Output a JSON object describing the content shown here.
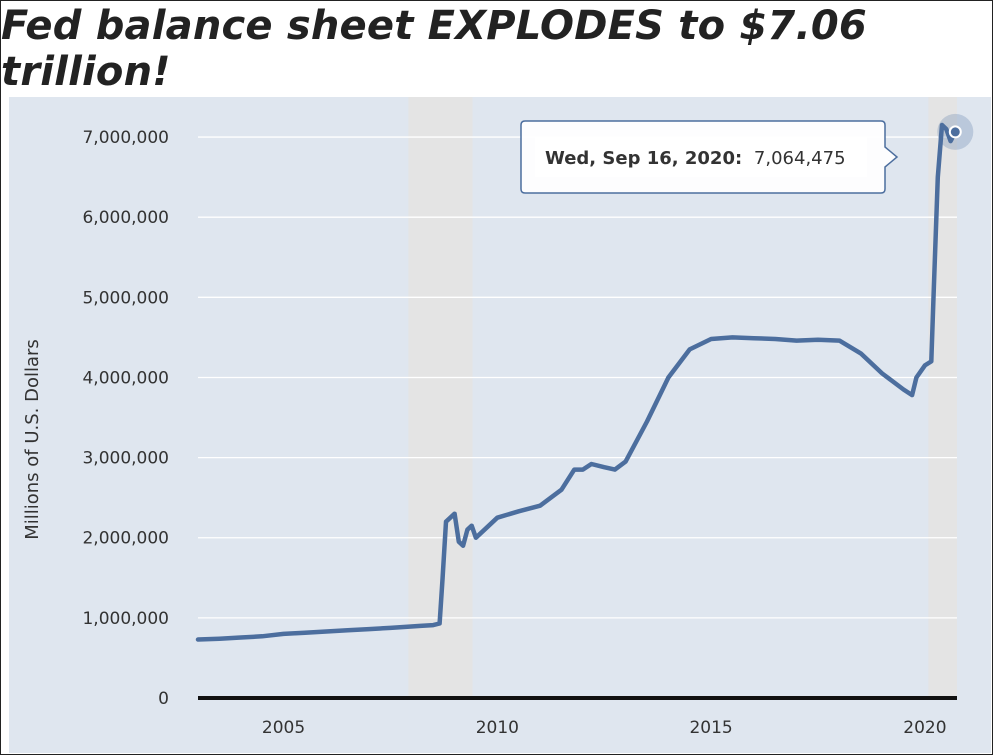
{
  "headline": "Fed balance sheet EXPLODES to $7.06 trillion!",
  "colors": {
    "plot_background": "#dfe6ef",
    "recession_band": "#e4e4e4",
    "series": "#4c6e9e",
    "gridline": "#ffffff",
    "axis": "#111111"
  },
  "chart_data": {
    "type": "line",
    "title": "",
    "xlabel": "",
    "ylabel": "Millions of U.S. Dollars",
    "xlim": [
      2003.0,
      2020.75
    ],
    "ylim": [
      0,
      7500000
    ],
    "x_ticks": [
      {
        "value": 2005,
        "label": "2005"
      },
      {
        "value": 2010,
        "label": "2010"
      },
      {
        "value": 2015,
        "label": "2015"
      },
      {
        "value": 2020,
        "label": "2020"
      }
    ],
    "y_ticks": [
      {
        "value": 0,
        "label": "0"
      },
      {
        "value": 1000000,
        "label": "1,000,000"
      },
      {
        "value": 2000000,
        "label": "2,000,000"
      },
      {
        "value": 3000000,
        "label": "3,000,000"
      },
      {
        "value": 4000000,
        "label": "4,000,000"
      },
      {
        "value": 5000000,
        "label": "5,000,000"
      },
      {
        "value": 6000000,
        "label": "6,000,000"
      },
      {
        "value": 7000000,
        "label": "7,000,000"
      }
    ],
    "grid": true,
    "recessions": [
      {
        "start": 2007.92,
        "end": 2009.42
      },
      {
        "start": 2020.08,
        "end": 2020.75
      }
    ],
    "series": [
      {
        "name": "",
        "points": [
          [
            2003.0,
            730000
          ],
          [
            2003.5,
            740000
          ],
          [
            2004.0,
            755000
          ],
          [
            2004.5,
            770000
          ],
          [
            2005.0,
            800000
          ],
          [
            2005.5,
            815000
          ],
          [
            2006.0,
            830000
          ],
          [
            2006.5,
            845000
          ],
          [
            2007.0,
            860000
          ],
          [
            2007.5,
            875000
          ],
          [
            2007.9,
            890000
          ],
          [
            2008.2,
            900000
          ],
          [
            2008.5,
            910000
          ],
          [
            2008.65,
            930000
          ],
          [
            2008.72,
            1500000
          ],
          [
            2008.8,
            2200000
          ],
          [
            2008.9,
            2250000
          ],
          [
            2009.0,
            2300000
          ],
          [
            2009.1,
            1950000
          ],
          [
            2009.2,
            1900000
          ],
          [
            2009.3,
            2100000
          ],
          [
            2009.4,
            2150000
          ],
          [
            2009.5,
            2000000
          ],
          [
            2009.7,
            2100000
          ],
          [
            2010.0,
            2250000
          ],
          [
            2010.5,
            2330000
          ],
          [
            2011.0,
            2400000
          ],
          [
            2011.5,
            2600000
          ],
          [
            2011.8,
            2850000
          ],
          [
            2012.0,
            2850000
          ],
          [
            2012.2,
            2920000
          ],
          [
            2012.5,
            2880000
          ],
          [
            2012.75,
            2850000
          ],
          [
            2013.0,
            2950000
          ],
          [
            2013.5,
            3450000
          ],
          [
            2014.0,
            4000000
          ],
          [
            2014.5,
            4350000
          ],
          [
            2015.0,
            4480000
          ],
          [
            2015.5,
            4500000
          ],
          [
            2016.0,
            4490000
          ],
          [
            2016.5,
            4480000
          ],
          [
            2017.0,
            4460000
          ],
          [
            2017.5,
            4470000
          ],
          [
            2018.0,
            4460000
          ],
          [
            2018.5,
            4300000
          ],
          [
            2019.0,
            4050000
          ],
          [
            2019.5,
            3850000
          ],
          [
            2019.7,
            3780000
          ],
          [
            2019.8,
            4000000
          ],
          [
            2020.0,
            4150000
          ],
          [
            2020.15,
            4200000
          ],
          [
            2020.2,
            5000000
          ],
          [
            2020.3,
            6500000
          ],
          [
            2020.4,
            7150000
          ],
          [
            2020.5,
            7100000
          ],
          [
            2020.6,
            6950000
          ],
          [
            2020.71,
            7064475
          ]
        ]
      }
    ],
    "tooltip": {
      "date_label": "Wed, Sep 16, 2020:",
      "value_label": "7,064,475",
      "x": 2020.71,
      "y": 7064475
    }
  }
}
